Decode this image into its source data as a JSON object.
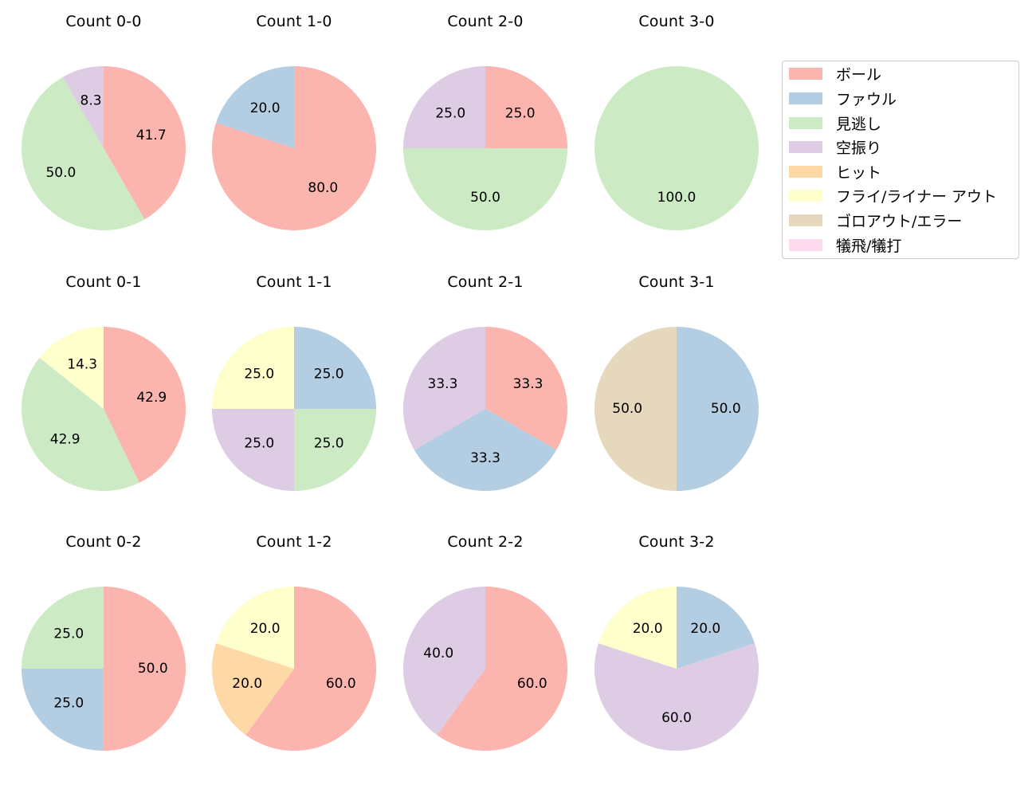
{
  "chart_data": {
    "type": "pie",
    "title": "",
    "start_angle_deg": 90,
    "direction": "clockwise",
    "categories": [
      "ボール",
      "ファウル",
      "見逃し",
      "空振り",
      "ヒット",
      "フライ/ライナー アウト",
      "ゴロアウト/エラー",
      "犠飛/犠打"
    ],
    "colors": [
      "#fbb4ae",
      "#b3cde3",
      "#ccebc5",
      "#decbe4",
      "#fed9a6",
      "#ffffcc",
      "#e5d8bd",
      "#fddaec"
    ],
    "legend_position": "upper right",
    "panels": [
      {
        "title": "Count 0-0",
        "values": [
          41.7,
          0,
          50.0,
          8.3,
          0,
          0,
          0,
          0
        ]
      },
      {
        "title": "Count 1-0",
        "values": [
          80.0,
          20.0,
          0,
          0,
          0,
          0,
          0,
          0
        ]
      },
      {
        "title": "Count 2-0",
        "values": [
          25.0,
          0,
          50.0,
          25.0,
          0,
          0,
          0,
          0
        ]
      },
      {
        "title": "Count 3-0",
        "values": [
          0,
          0,
          100.0,
          0,
          0,
          0,
          0,
          0
        ]
      },
      {
        "title": "Count 0-1",
        "values": [
          42.9,
          0,
          42.9,
          0,
          0,
          14.3,
          0,
          0
        ]
      },
      {
        "title": "Count 1-1",
        "values": [
          0,
          25.0,
          25.0,
          25.0,
          0,
          25.0,
          0,
          0
        ]
      },
      {
        "title": "Count 2-1",
        "values": [
          33.3,
          33.3,
          0,
          33.3,
          0,
          0,
          0,
          0
        ]
      },
      {
        "title": "Count 3-1",
        "values": [
          0,
          50.0,
          0,
          0,
          0,
          0,
          50.0,
          0
        ]
      },
      {
        "title": "Count 0-2",
        "values": [
          50.0,
          25.0,
          25.0,
          0,
          0,
          0,
          0,
          0
        ]
      },
      {
        "title": "Count 1-2",
        "values": [
          60.0,
          0,
          0,
          0,
          20.0,
          20.0,
          0,
          0
        ]
      },
      {
        "title": "Count 2-2",
        "values": [
          60.0,
          0,
          0,
          40.0,
          0,
          0,
          0,
          0
        ]
      },
      {
        "title": "Count 3-2",
        "values": [
          0,
          20.0,
          0,
          60.0,
          0,
          20.0,
          0,
          0
        ]
      }
    ]
  },
  "legend": {
    "items": [
      {
        "label": "ボール",
        "color": "#fbb4ae"
      },
      {
        "label": "ファウル",
        "color": "#b3cde3"
      },
      {
        "label": "見逃し",
        "color": "#ccebc5"
      },
      {
        "label": "空振り",
        "color": "#decbe4"
      },
      {
        "label": "ヒット",
        "color": "#fed9a6"
      },
      {
        "label": "フライ/ライナー アウト",
        "color": "#ffffcc"
      },
      {
        "label": "ゴロアウト/エラー",
        "color": "#e5d8bd"
      },
      {
        "label": "犠飛/犠打",
        "color": "#fddaec"
      }
    ]
  }
}
